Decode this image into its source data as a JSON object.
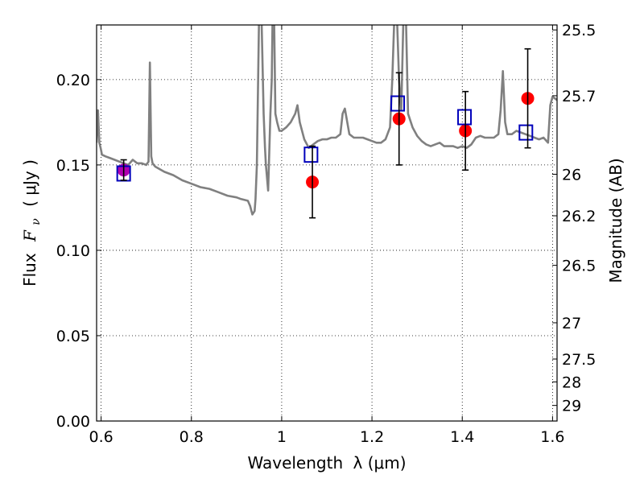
{
  "chart_data": {
    "type": "scatter",
    "xlabel": "Wavelength",
    "xlabel_math": "λ (μm)",
    "ylabel": "Flux",
    "ylabel_math": "F",
    "ylabel_math_sub": "ν",
    "ylabel_unit": "( μJy )",
    "y2label": "Magnitude (AB)",
    "xlim": [
      0.59,
      1.61
    ],
    "ylim": [
      0.0,
      0.232
    ],
    "grid": true,
    "x_ticks": [
      {
        "value": 0.6,
        "label": "0.6"
      },
      {
        "value": 0.8,
        "label": "0.8"
      },
      {
        "value": 1.0,
        "label": "1"
      },
      {
        "value": 1.2,
        "label": "1.2"
      },
      {
        "value": 1.4,
        "label": "1.4"
      },
      {
        "value": 1.6,
        "label": "1.6"
      }
    ],
    "y_ticks": [
      {
        "value": 0.0,
        "label": "0.00"
      },
      {
        "value": 0.05,
        "label": "0.05"
      },
      {
        "value": 0.1,
        "label": "0.10"
      },
      {
        "value": 0.15,
        "label": "0.15"
      },
      {
        "value": 0.2,
        "label": "0.20"
      }
    ],
    "y2_ticks": [
      {
        "value": 25.5,
        "label": "25.5"
      },
      {
        "value": 25.7,
        "label": "25.7"
      },
      {
        "value": 26.0,
        "label": "26"
      },
      {
        "value": 26.2,
        "label": "26.2"
      },
      {
        "value": 26.5,
        "label": "26.5"
      },
      {
        "value": 27.0,
        "label": "27"
      },
      {
        "value": 27.5,
        "label": "27.5"
      },
      {
        "value": 28.0,
        "label": "28"
      },
      {
        "value": 29.0,
        "label": "29"
      }
    ],
    "series": [
      {
        "kind": "line",
        "color": "#808080",
        "x": [
          0.59,
          0.593,
          0.596,
          0.599,
          0.602,
          0.61,
          0.62,
          0.63,
          0.64,
          0.65,
          0.66,
          0.67,
          0.68,
          0.69,
          0.7,
          0.705,
          0.708,
          0.711,
          0.714,
          0.72,
          0.74,
          0.76,
          0.78,
          0.8,
          0.82,
          0.84,
          0.86,
          0.88,
          0.9,
          0.91,
          0.925,
          0.93,
          0.935,
          0.94,
          0.942,
          0.945,
          0.95,
          0.955,
          0.96,
          0.963,
          0.965,
          0.97,
          0.975,
          0.978,
          0.98,
          0.983,
          0.986,
          0.99,
          0.995,
          1.0,
          1.01,
          1.02,
          1.03,
          1.035,
          1.04,
          1.05,
          1.06,
          1.07,
          1.08,
          1.09,
          1.1,
          1.11,
          1.12,
          1.13,
          1.135,
          1.14,
          1.15,
          1.16,
          1.17,
          1.18,
          1.19,
          1.2,
          1.21,
          1.22,
          1.23,
          1.24,
          1.245,
          1.25,
          1.255,
          1.26,
          1.265,
          1.27,
          1.275,
          1.28,
          1.29,
          1.3,
          1.31,
          1.32,
          1.33,
          1.34,
          1.35,
          1.36,
          1.37,
          1.38,
          1.39,
          1.4,
          1.41,
          1.42,
          1.43,
          1.44,
          1.45,
          1.46,
          1.47,
          1.48,
          1.485,
          1.49,
          1.495,
          1.5,
          1.51,
          1.52,
          1.53,
          1.54,
          1.55,
          1.56,
          1.57,
          1.58,
          1.59,
          1.595,
          1.6,
          1.61
        ],
        "y": [
          0.163,
          0.182,
          0.163,
          0.16,
          0.156,
          0.155,
          0.154,
          0.153,
          0.152,
          0.151,
          0.15,
          0.153,
          0.151,
          0.151,
          0.15,
          0.152,
          0.21,
          0.155,
          0.151,
          0.149,
          0.146,
          0.144,
          0.141,
          0.139,
          0.137,
          0.136,
          0.134,
          0.132,
          0.131,
          0.13,
          0.129,
          0.126,
          0.121,
          0.123,
          0.13,
          0.15,
          0.24,
          0.24,
          0.18,
          0.16,
          0.15,
          0.135,
          0.18,
          0.2,
          0.24,
          0.24,
          0.18,
          0.175,
          0.17,
          0.17,
          0.172,
          0.175,
          0.18,
          0.185,
          0.175,
          0.165,
          0.16,
          0.162,
          0.164,
          0.165,
          0.165,
          0.166,
          0.166,
          0.168,
          0.18,
          0.183,
          0.168,
          0.166,
          0.166,
          0.166,
          0.165,
          0.164,
          0.163,
          0.163,
          0.165,
          0.172,
          0.2,
          0.24,
          0.24,
          0.2,
          0.182,
          0.24,
          0.24,
          0.18,
          0.172,
          0.167,
          0.164,
          0.162,
          0.161,
          0.162,
          0.163,
          0.161,
          0.161,
          0.161,
          0.16,
          0.161,
          0.16,
          0.162,
          0.166,
          0.167,
          0.166,
          0.166,
          0.166,
          0.168,
          0.182,
          0.205,
          0.175,
          0.168,
          0.168,
          0.17,
          0.169,
          0.168,
          0.167,
          0.166,
          0.165,
          0.166,
          0.163,
          0.185,
          0.19,
          0.188
        ]
      },
      {
        "kind": "points",
        "marker": "circle",
        "color": "#ff0000",
        "x": [
          1.068,
          1.26,
          1.407,
          1.545
        ],
        "y": [
          0.14,
          0.177,
          0.17,
          0.189
        ]
      },
      {
        "kind": "points",
        "marker": "circle",
        "color": "#b000b0",
        "x": [
          0.65
        ],
        "y": [
          0.147
        ]
      },
      {
        "kind": "points",
        "marker": "open-square",
        "color": "#0000bb",
        "x": [
          0.65,
          1.065,
          1.257,
          1.405,
          1.541
        ],
        "y": [
          0.145,
          0.156,
          0.186,
          0.178,
          0.169
        ]
      },
      {
        "kind": "errorbars",
        "color": "#000000",
        "x": [
          0.65,
          1.068,
          1.26,
          1.407,
          1.545
        ],
        "y": [
          0.147,
          0.14,
          0.177,
          0.17,
          0.189
        ],
        "yerr": [
          0.006,
          0.021,
          0.027,
          0.023,
          0.029
        ]
      }
    ]
  }
}
